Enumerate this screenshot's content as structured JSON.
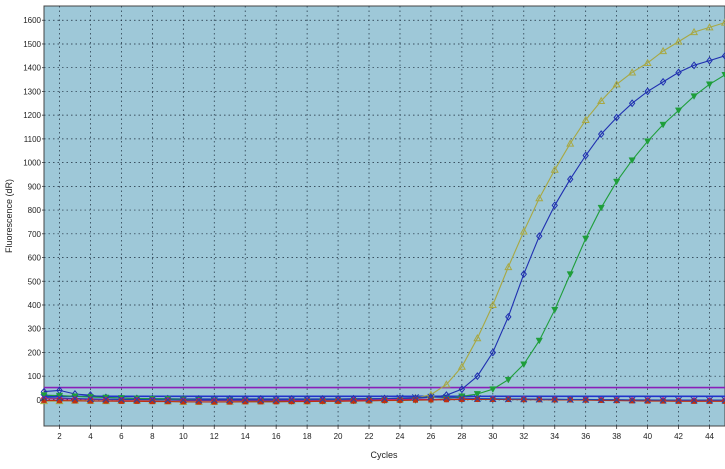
{
  "chart_data": {
    "type": "line",
    "title": "",
    "xlabel": "Cycles",
    "ylabel": "Fluorescence (dR)",
    "xlim": [
      1,
      45
    ],
    "ylim": [
      -110,
      1660
    ],
    "x_ticks": [
      2,
      4,
      6,
      8,
      10,
      12,
      14,
      16,
      18,
      20,
      22,
      24,
      26,
      28,
      30,
      32,
      34,
      36,
      38,
      40,
      42,
      44
    ],
    "y_ticks": [
      0,
      100,
      200,
      300,
      400,
      500,
      600,
      700,
      800,
      900,
      1000,
      1100,
      1200,
      1300,
      1400,
      1500,
      1600
    ],
    "grid": true,
    "background_color": "#9ec8d8",
    "threshold_lines": [
      {
        "value": 52,
        "color": "#8a1fb8"
      },
      {
        "value": 15,
        "color": "#2233cc"
      }
    ],
    "series": [
      {
        "color": "#a8a843",
        "marker": "triangle-open",
        "x": [
          1,
          2,
          3,
          4,
          5,
          6,
          7,
          8,
          9,
          10,
          11,
          12,
          13,
          14,
          15,
          16,
          17,
          18,
          19,
          20,
          21,
          22,
          23,
          24,
          25,
          26,
          27,
          28,
          29,
          30,
          31,
          32,
          33,
          34,
          35,
          36,
          37,
          38,
          39,
          40,
          41,
          42,
          43,
          44,
          45
        ],
        "y": [
          -5,
          -5,
          -3,
          -4,
          -5,
          -4,
          -4,
          -5,
          -6,
          -8,
          -8,
          -8,
          -7,
          -6,
          -6,
          -5,
          -5,
          -6,
          -5,
          -4,
          -3,
          -2,
          0,
          2,
          8,
          22,
          65,
          140,
          260,
          400,
          560,
          710,
          850,
          970,
          1080,
          1180,
          1260,
          1330,
          1380,
          1420,
          1470,
          1510,
          1550,
          1570,
          1590
        ]
      },
      {
        "color": "#1f2fb0",
        "marker": "diamond-open",
        "x": [
          1,
          2,
          3,
          4,
          5,
          6,
          7,
          8,
          9,
          10,
          11,
          12,
          13,
          14,
          15,
          16,
          17,
          18,
          19,
          20,
          21,
          22,
          23,
          24,
          25,
          26,
          27,
          28,
          29,
          30,
          31,
          32,
          33,
          34,
          35,
          36,
          37,
          38,
          39,
          40,
          41,
          42,
          43,
          44,
          45
        ],
        "y": [
          35,
          40,
          25,
          20,
          10,
          8,
          6,
          5,
          5,
          4,
          4,
          4,
          4,
          4,
          4,
          4,
          4,
          4,
          4,
          4,
          5,
          5,
          6,
          6,
          7,
          10,
          20,
          45,
          100,
          200,
          350,
          530,
          690,
          820,
          930,
          1030,
          1120,
          1190,
          1250,
          1300,
          1340,
          1380,
          1410,
          1430,
          1450
        ]
      },
      {
        "color": "#1e9e3a",
        "marker": "triangle-down-filled",
        "x": [
          1,
          2,
          3,
          4,
          5,
          6,
          7,
          8,
          9,
          10,
          11,
          12,
          13,
          14,
          15,
          16,
          17,
          18,
          19,
          20,
          21,
          22,
          23,
          24,
          25,
          26,
          27,
          28,
          29,
          30,
          31,
          32,
          33,
          34,
          35,
          36,
          37,
          38,
          39,
          40,
          41,
          42,
          43,
          44,
          45
        ],
        "y": [
          20,
          18,
          15,
          12,
          10,
          8,
          6,
          5,
          4,
          2,
          0,
          -2,
          -2,
          -3,
          -4,
          -5,
          -6,
          -6,
          -5,
          -5,
          -4,
          -3,
          -2,
          -2,
          -1,
          0,
          5,
          15,
          25,
          45,
          85,
          150,
          250,
          380,
          530,
          680,
          810,
          920,
          1010,
          1090,
          1160,
          1220,
          1280,
          1330,
          1370
        ]
      },
      {
        "color": "#c0177a",
        "marker": "circle-filled",
        "x": [
          1,
          2,
          3,
          4,
          5,
          6,
          7,
          8,
          9,
          10,
          11,
          12,
          13,
          14,
          15,
          16,
          17,
          18,
          19,
          20,
          21,
          22,
          23,
          24,
          25,
          26,
          27,
          28,
          29,
          30,
          31,
          32,
          33,
          34,
          35,
          36,
          37,
          38,
          39,
          40,
          41,
          42,
          43,
          44,
          45
        ],
        "y": [
          5,
          4,
          3,
          2,
          1,
          0,
          0,
          -1,
          -1,
          -2,
          -3,
          -3,
          -3,
          -2,
          -2,
          -2,
          -2,
          -2,
          -1,
          -1,
          0,
          0,
          1,
          1,
          2,
          2,
          2,
          3,
          3,
          3,
          3,
          3,
          2,
          2,
          1,
          1,
          0,
          0,
          -1,
          -1,
          -1,
          -2,
          -2,
          -2,
          -2
        ]
      },
      {
        "color": "#c03010",
        "marker": "square-filled",
        "x": [
          1,
          2,
          3,
          4,
          5,
          6,
          7,
          8,
          9,
          10,
          11,
          12,
          13,
          14,
          15,
          16,
          17,
          18,
          19,
          20,
          21,
          22,
          23,
          24,
          25,
          26,
          27,
          28,
          29,
          30,
          31,
          32,
          33,
          34,
          35,
          36,
          37,
          38,
          39,
          40,
          41,
          42,
          43,
          44,
          45
        ],
        "y": [
          -2,
          -3,
          -4,
          -5,
          -5,
          -6,
          -6,
          -7,
          -7,
          -8,
          -9,
          -9,
          -9,
          -8,
          -8,
          -8,
          -7,
          -7,
          -6,
          -6,
          -5,
          -4,
          -3,
          -2,
          -1,
          0,
          1,
          2,
          2,
          2,
          2,
          1,
          1,
          0,
          0,
          -1,
          -2,
          -3,
          -4,
          -5,
          -5,
          -6,
          -6,
          -6,
          -6
        ]
      },
      {
        "color": "#2244aa",
        "marker": "x",
        "x": [
          1,
          2,
          3,
          4,
          5,
          6,
          7,
          8,
          9,
          10,
          11,
          12,
          13,
          14,
          15,
          16,
          17,
          18,
          19,
          20,
          21,
          22,
          23,
          24,
          25,
          26,
          27,
          28,
          29,
          30,
          31,
          32,
          33,
          34,
          35,
          36,
          37,
          38,
          39,
          40,
          41,
          42,
          43,
          44,
          45
        ],
        "y": [
          10,
          8,
          6,
          4,
          3,
          2,
          2,
          1,
          0,
          0,
          -1,
          -1,
          0,
          0,
          0,
          0,
          1,
          1,
          2,
          2,
          3,
          4,
          5,
          8,
          10,
          12,
          10,
          8,
          6,
          5,
          4,
          4,
          3,
          3,
          2,
          2,
          1,
          1,
          0,
          0,
          -1,
          -1,
          -1,
          -1,
          -1
        ]
      }
    ]
  }
}
